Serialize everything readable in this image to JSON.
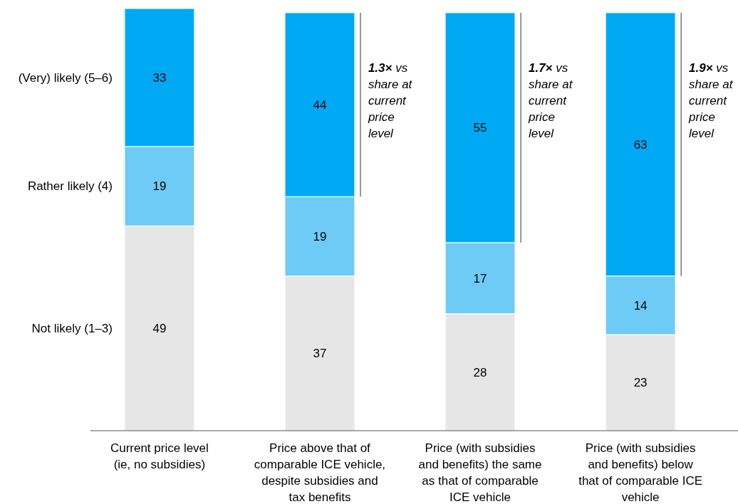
{
  "chart_data": {
    "type": "bar",
    "stacked": true,
    "data_labels": true,
    "legend": "left",
    "categories": [
      "Current price level (ie, no subsidies)",
      "Price above that of comparable ICE vehicle, despite subsidies and tax benefits",
      "Price (with subsidies and benefits) the same as that of comparable ICE vehicle",
      "Price (with subsidies and benefits) below that of comparable ICE vehicle"
    ],
    "series": [
      {
        "name": "Not likely (1–3)",
        "color": "#e6e6e6",
        "values": [
          49,
          37,
          28,
          23
        ]
      },
      {
        "name": "Rather likely (4)",
        "color": "#6ecbf6",
        "values": [
          19,
          19,
          17,
          14
        ]
      },
      {
        "name": "(Very) likely (5–6)",
        "color": "#00a9f4",
        "values": [
          33,
          44,
          55,
          63
        ]
      }
    ],
    "annotations": [
      "1.3× vs share at current price level",
      "1.7× vs share at current price level",
      "1.9× vs share at current price level"
    ]
  }
}
